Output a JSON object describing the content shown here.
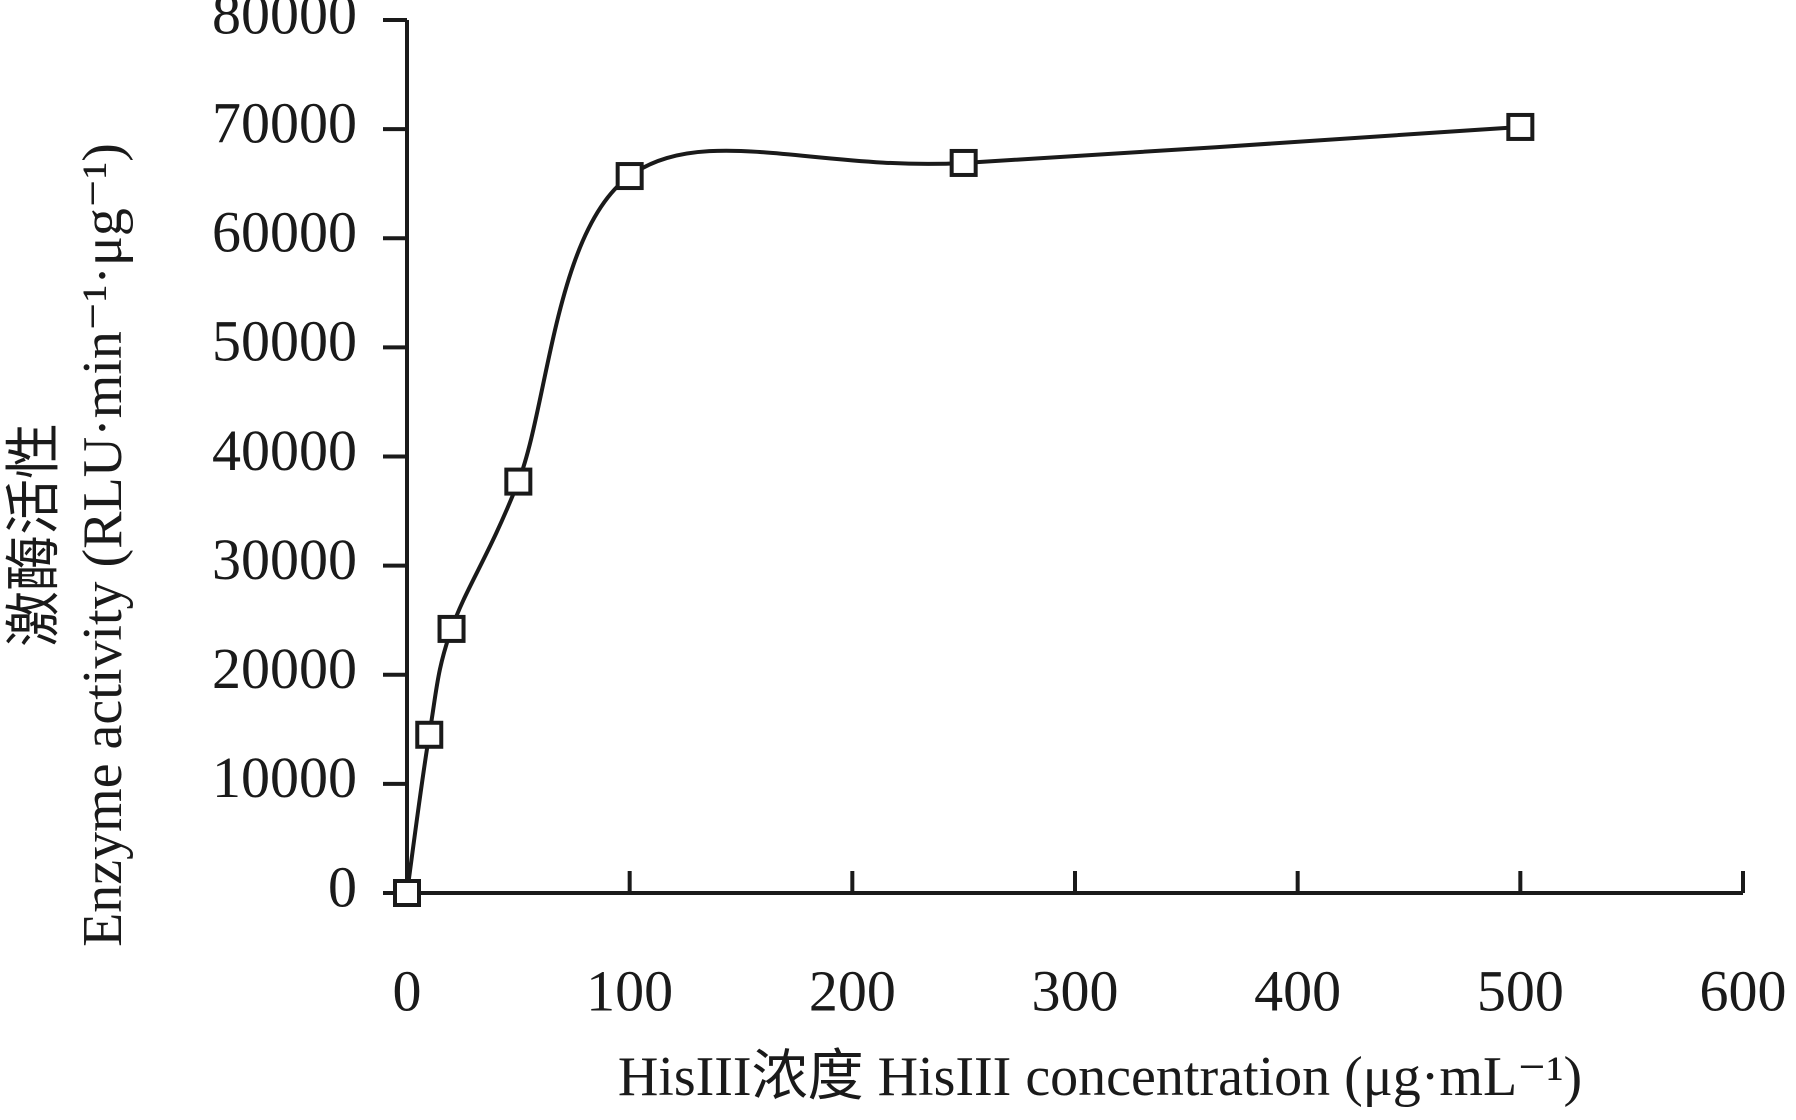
{
  "chart_data": {
    "type": "line",
    "y_title_lines": [
      "激酶活性",
      "Enzyme activity (RLU·min⁻¹·μg⁻¹)"
    ],
    "x_title": "HisIII浓度 HisIII concentration (μg·mL⁻¹)",
    "x": [
      0,
      10,
      20,
      50,
      100,
      250,
      500
    ],
    "series": [
      {
        "color": "#1a1a1a",
        "values": [
          0,
          14500,
          24200,
          37700,
          65700,
          66900,
          70200
        ]
      }
    ],
    "xlim": [
      0,
      600
    ],
    "xticks": [
      0,
      100,
      200,
      300,
      400,
      500,
      600
    ],
    "ylim": [
      0,
      80000
    ],
    "yticks": [
      0,
      10000,
      20000,
      30000,
      40000,
      50000,
      60000,
      70000,
      80000
    ],
    "smooth": true,
    "marker": "square"
  }
}
